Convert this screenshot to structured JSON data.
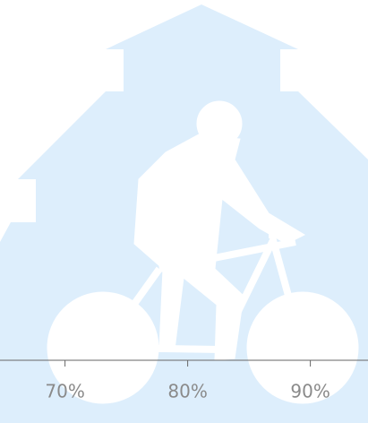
{
  "chart_data": {
    "type": "pictorial",
    "xlim": [
      64.7,
      94.7
    ],
    "xticks": [
      {
        "value": 70,
        "label": "70%"
      },
      {
        "value": 80,
        "label": "80%"
      },
      {
        "value": 90,
        "label": "90%"
      }
    ]
  }
}
